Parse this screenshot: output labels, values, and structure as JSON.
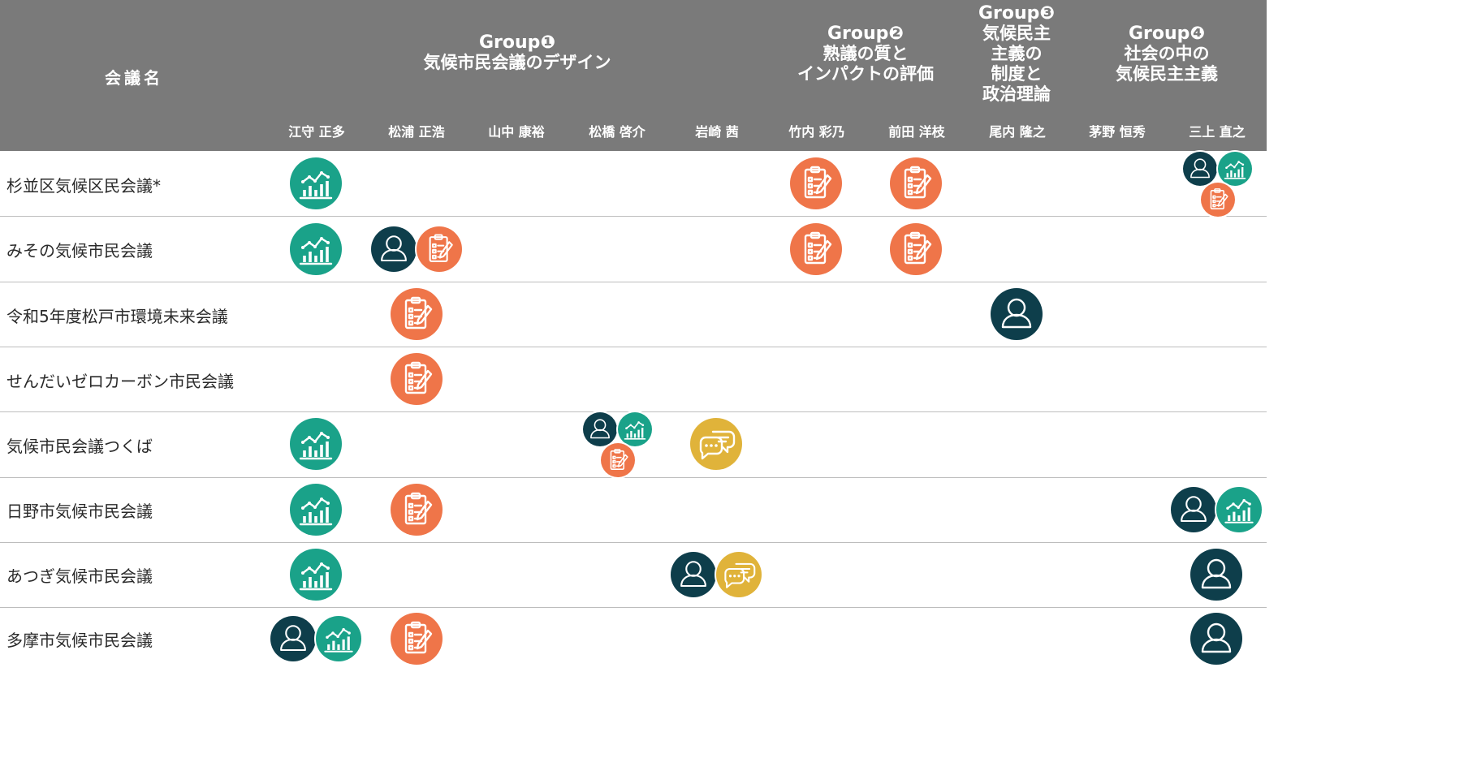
{
  "header": {
    "conference_name_label": "会議名",
    "groups": [
      {
        "title": "Group❶",
        "subtitle": "気候市民会議のデザイン"
      },
      {
        "title": "Group❷",
        "subtitle_line1": "熟議の質と",
        "subtitle_line2": "インパクトの評価"
      },
      {
        "title": "Group❸",
        "subtitle_line1": "気候民主",
        "subtitle_line2": "主義の",
        "subtitle_line3": "制度と",
        "subtitle_line4": "政治理論"
      },
      {
        "title": "Group❹",
        "subtitle_line1": "社会の中の",
        "subtitle_line2": "気候民主主義"
      }
    ],
    "members": [
      "江守 正多",
      "松浦 正浩",
      "山中 康裕",
      "松橋 啓介",
      "岩崎 茜",
      "竹内 彩乃",
      "前田 洋枝",
      "尾内 隆之",
      "茅野 恒秀",
      "三上 直之"
    ]
  },
  "rows": [
    {
      "name": "杉並区気候区民会議*"
    },
    {
      "name": "みその気候市民会議"
    },
    {
      "name": "令和5年度松戸市環境未来会議"
    },
    {
      "name": "せんだいゼロカーボン市民会議"
    },
    {
      "name": "気候市民会議つくば"
    },
    {
      "name": "日野市気候市民会議"
    },
    {
      "name": "あつぎ気候市民会議"
    },
    {
      "name": "多摩市気候市民会議"
    }
  ],
  "icon_types": {
    "person": {
      "icon": "person-icon",
      "color": "#0e3e4b"
    },
    "chart": {
      "icon": "chart-icon",
      "color": "#1aa289"
    },
    "clipboard": {
      "icon": "clipboard-icon",
      "color": "#ef7549"
    },
    "chat": {
      "icon": "chat-icon",
      "color": "#e0b33a"
    }
  },
  "cells": [
    {
      "row": 0,
      "member": 0,
      "icons": [
        "chart"
      ]
    },
    {
      "row": 0,
      "member": 5,
      "icons": [
        "clipboard"
      ]
    },
    {
      "row": 0,
      "member": 6,
      "icons": [
        "clipboard"
      ]
    },
    {
      "row": 0,
      "member": 9,
      "icons": [
        "person",
        "chart",
        "clipboard"
      ]
    },
    {
      "row": 1,
      "member": 0,
      "icons": [
        "chart"
      ]
    },
    {
      "row": 1,
      "member": 1,
      "icons": [
        "person",
        "clipboard"
      ]
    },
    {
      "row": 1,
      "member": 5,
      "icons": [
        "clipboard"
      ]
    },
    {
      "row": 1,
      "member": 6,
      "icons": [
        "clipboard"
      ]
    },
    {
      "row": 2,
      "member": 1,
      "icons": [
        "clipboard"
      ]
    },
    {
      "row": 2,
      "member": 7,
      "icons": [
        "person"
      ]
    },
    {
      "row": 3,
      "member": 1,
      "icons": [
        "clipboard"
      ]
    },
    {
      "row": 4,
      "member": 0,
      "icons": [
        "chart"
      ]
    },
    {
      "row": 4,
      "member": 3,
      "icons": [
        "person",
        "chart",
        "clipboard"
      ]
    },
    {
      "row": 4,
      "member": 4,
      "icons": [
        "chat"
      ]
    },
    {
      "row": 5,
      "member": 0,
      "icons": [
        "chart"
      ]
    },
    {
      "row": 5,
      "member": 1,
      "icons": [
        "clipboard"
      ]
    },
    {
      "row": 5,
      "member": 9,
      "icons": [
        "person",
        "chart"
      ]
    },
    {
      "row": 6,
      "member": 0,
      "icons": [
        "chart"
      ]
    },
    {
      "row": 6,
      "member": 4,
      "icons": [
        "person",
        "chat"
      ]
    },
    {
      "row": 6,
      "member": 9,
      "icons": [
        "person"
      ]
    },
    {
      "row": 7,
      "member": 0,
      "icons": [
        "person",
        "chart"
      ]
    },
    {
      "row": 7,
      "member": 1,
      "icons": [
        "clipboard"
      ]
    },
    {
      "row": 7,
      "member": 9,
      "icons": [
        "person"
      ]
    }
  ]
}
